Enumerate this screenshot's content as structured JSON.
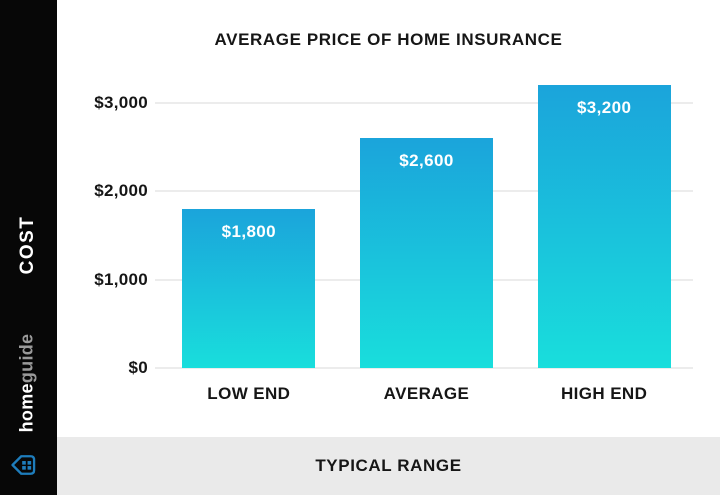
{
  "sidebar": {
    "axis_label": "COST",
    "brand_bold": "home",
    "brand_light": "guide",
    "logo_icon": "homeguide-house-icon"
  },
  "footer": {
    "label": "TYPICAL RANGE"
  },
  "colors": {
    "sidebar_bg": "#070707",
    "footer_bg": "#EAEAEA",
    "gridline": "#ECECEC",
    "bar_top": "#1BA4DB",
    "bar_bottom": "#19DEDC",
    "bar_label": "#FFFFFF",
    "logo_blue": "#1E7DBC",
    "text_dark": "#161616"
  },
  "chart_data": {
    "type": "bar",
    "title": "AVERAGE PRICE OF HOME INSURANCE",
    "categories": [
      "LOW END",
      "AVERAGE",
      "HIGH END"
    ],
    "values": [
      1800,
      2600,
      3200
    ],
    "value_labels": [
      "$1,800",
      "$2,600",
      "$3,200"
    ],
    "ylabel": "COST",
    "xlabel": "TYPICAL RANGE",
    "ylim": [
      0,
      3000
    ],
    "yticks": [
      0,
      1000,
      2000,
      3000
    ],
    "ytick_labels": [
      "$0",
      "$1,000",
      "$2,000",
      "$3,000"
    ],
    "grid": true,
    "legend": false,
    "bar_gradient": [
      "#1BA4DB",
      "#19DEDC"
    ]
  }
}
